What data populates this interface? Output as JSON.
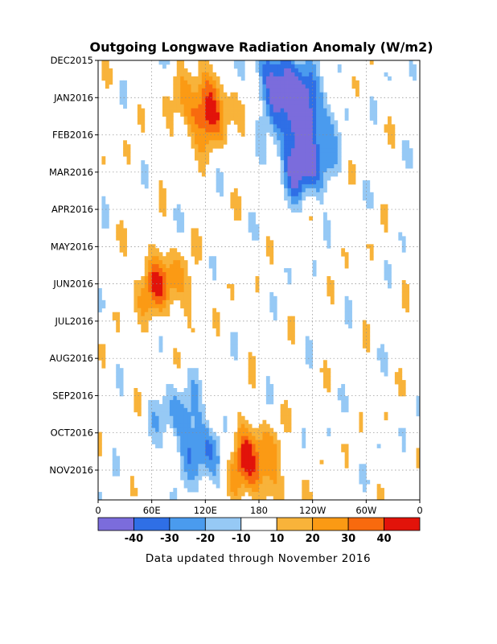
{
  "chart_data": {
    "type": "heatmap",
    "title": "Outgoing Longwave Radiation Anomaly (W/m2)",
    "y_tick_labels": [
      "DEC2015",
      "JAN2016",
      "FEB2016",
      "MAR2016",
      "APR2016",
      "MAY2016",
      "JUN2016",
      "JUL2016",
      "AUG2016",
      "SEP2016",
      "OCT2016",
      "NOV2016"
    ],
    "x_tick_labels": [
      "0",
      "60E",
      "120E",
      "180",
      "120W",
      "60W",
      "0"
    ],
    "x_range_deg_east": [
      0,
      360
    ],
    "x_tick_values_deg_east": [
      0,
      60,
      120,
      180,
      240,
      300,
      360
    ],
    "y_range": [
      "DEC2015",
      "NOV2016"
    ],
    "grid": true,
    "colorbar": {
      "tick_labels": [
        "-40",
        "-30",
        "-20",
        "-10",
        "10",
        "20",
        "30",
        "40"
      ],
      "bins": [
        -50,
        -40,
        -30,
        -20,
        -10,
        10,
        20,
        30,
        40,
        50
      ],
      "colors": [
        "#7b6cdc",
        "#2f6fe6",
        "#4a9bee",
        "#96c9f5",
        "#ffffff",
        "#f8b33a",
        "#fb9a14",
        "#f86a0e",
        "#e2130a"
      ]
    },
    "features": [
      {
        "lon": 205,
        "month": 0.5,
        "value": -45,
        "note": "strong negative anomaly near dateline, Dec-Mar"
      },
      {
        "lon": 230,
        "month": 1.5,
        "value": -45
      },
      {
        "lon": 230,
        "month": 2.8,
        "value": -45
      },
      {
        "lon": 120,
        "month": 1.3,
        "value": 45,
        "note": "strong positive anomaly over Maritime Continent"
      },
      {
        "lon": 70,
        "month": 6.0,
        "value": 35
      },
      {
        "lon": 165,
        "month": 10.5,
        "value": 30
      },
      {
        "lon": 180,
        "month": 11.2,
        "value": 20
      },
      {
        "lon": 120,
        "month": 10.5,
        "value": -30
      },
      {
        "lon": 90,
        "month": 9.5,
        "value": -20
      }
    ]
  },
  "footnote": "Data updated through November 2016"
}
